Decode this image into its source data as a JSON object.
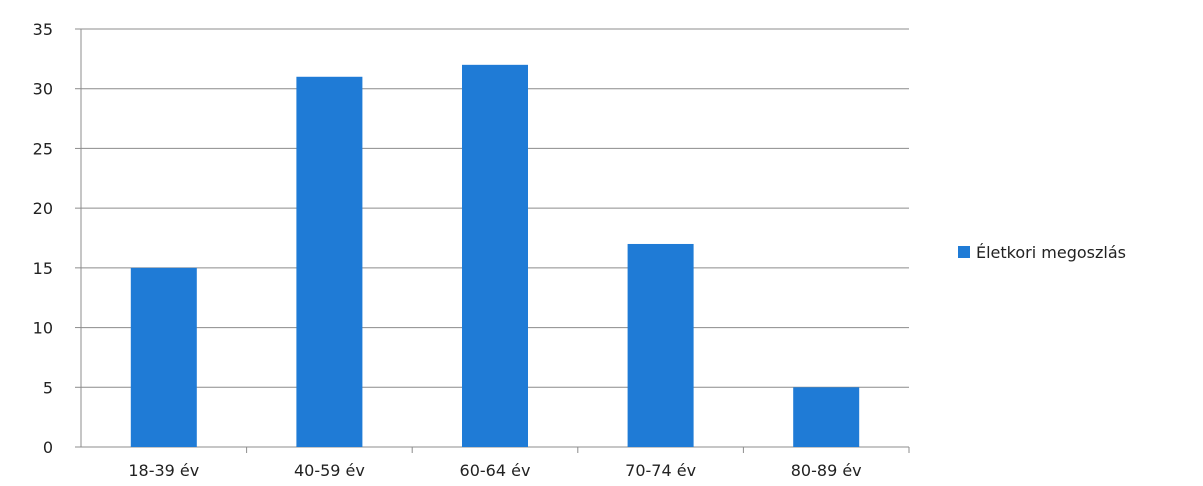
{
  "chart_data": {
    "type": "bar",
    "categories": [
      "18-39 év",
      "40-59 év",
      "60-64 év",
      "70-74 év",
      "80-89 év"
    ],
    "series": [
      {
        "name": "Életkori megoszlás",
        "values": [
          15,
          31,
          32,
          17,
          5
        ],
        "color": "#1f7bd6"
      }
    ],
    "title": "",
    "xlabel": "",
    "ylabel": "",
    "ylim": [
      0,
      35
    ],
    "yticks": [
      0,
      5,
      10,
      15,
      20,
      25,
      30,
      35
    ],
    "grid": true,
    "legend_position": "right"
  }
}
